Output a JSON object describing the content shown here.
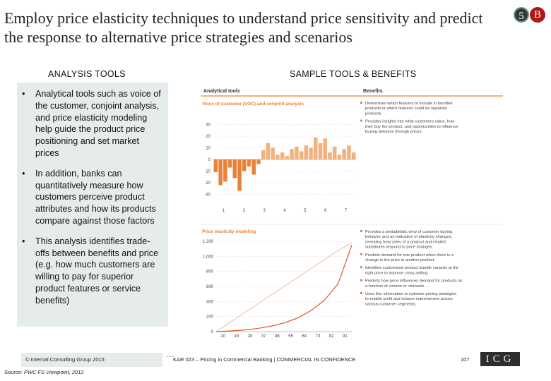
{
  "title": "Employ price elasticity techniques to understand price sensitivity and predict the response to alternative price strategies and scenarios",
  "badges": [
    "5",
    "B"
  ],
  "headers": {
    "left": "ANALYSIS TOOLS",
    "right": "SAMPLE TOOLS & BENEFITS"
  },
  "bullets": [
    {
      "symbol": "•",
      "text": "Analytical tools such as voice of the customer, conjoint analysis, and price elasticity modeling help guide the product price positioning and set market prices"
    },
    {
      "symbol": "•",
      "text": "In addition, banks can quantitatively measure how customers perceive product attributes and how its products compare against those factors"
    },
    {
      "symbol": "•",
      "text": "This analysis identifies trade-offs between benefits and price (e.g. how much customers are willing to pay for superior product features or service benefits)"
    }
  ],
  "sample": {
    "col_tools": "Analytical tools",
    "col_benefits": "Benefits",
    "voc_title": "Voice of customer (VOC) and conjoint analysis",
    "elasticity_title": "Price elasticity modeling",
    "voc_benefits": [
      "Determines which features to include in bundled products or which features could be separate products.",
      "Provides insights into what customers value, how they buy the product, and opportunities to influence buying behavior through prices."
    ],
    "elasticity_benefits": [
      "Provides a probabilistic view of customer buying behavior and an indication of elasticity changes, revealing how sales of a product and related substitutes respond to price changes.",
      "Predicts demand for one product when there is a change in the price in another product.",
      "Identifies customized product bundle variants at the right price to improve cross-selling.",
      "Predicts how price influences demand for products as a function of volume or channels.",
      "Uses this information to optimize pricing strategies to enable profit and volume improvement across various customer segments."
    ]
  },
  "chart_data": [
    {
      "type": "bar",
      "title": "Voice of customer (VOC) and conjoint analysis",
      "ylim": [
        -40,
        40
      ],
      "yticks": [
        "30",
        "20",
        "10",
        "0",
        "-10",
        "-20",
        "-30"
      ],
      "xticks": [
        "1",
        "2",
        "3",
        "4",
        "5",
        "6",
        "7"
      ],
      "values": [
        -11,
        -22,
        -19,
        -7,
        -16,
        -27,
        -10,
        -6,
        -13,
        -4,
        8,
        14,
        10,
        4,
        6,
        3,
        9,
        11,
        7,
        12,
        10,
        19,
        14,
        18,
        6,
        11,
        4,
        9,
        12,
        6
      ]
    },
    {
      "type": "line",
      "title": "Price elasticity modeling",
      "ylim": [
        0,
        1200
      ],
      "yticks": [
        "1,200",
        "1,000",
        "800",
        "600",
        "400",
        "200",
        "0"
      ],
      "xticks": [
        "10",
        "19",
        "28",
        "37",
        "46",
        "55",
        "64",
        "73",
        "82",
        "91"
      ],
      "series": [
        {
          "values": [
            0,
            120,
            240,
            360,
            480,
            600,
            720,
            840,
            960,
            1080,
            1180
          ]
        },
        {
          "values": [
            0,
            8,
            20,
            40,
            70,
            115,
            180,
            280,
            420,
            640,
            1150
          ]
        }
      ]
    }
  ],
  "footer": {
    "copyright": "© Internal Consulting Group 2015",
    "middle": "KAR 023 – Pricing in Commercial Banking | COMMERCIAL IN CONFIDENCE",
    "page": "107",
    "logo": "ICG"
  },
  "source": "Source: PWC FS Viewpoint, 2012",
  "colors": {
    "accent": "#e8823a",
    "panel": "#e6ecea",
    "accent_dark": "#c96a24"
  }
}
